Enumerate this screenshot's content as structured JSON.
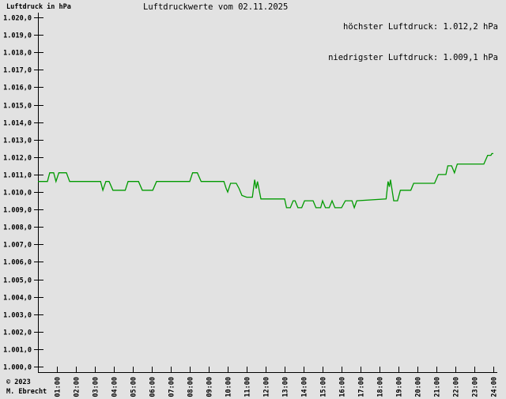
{
  "header": {
    "y_axis_unit": "Luftdruck in hPa",
    "title": "Luftdruckwerte vom 02.11.2025",
    "max_label": "höchster Luftdruck: 1.012,2 hPa",
    "min_label": "niedrigster Luftdruck: 1.009,1 hPa"
  },
  "footer": {
    "copyright": "© 2023",
    "author": "M. Ebrecht"
  },
  "chart_data": {
    "type": "line",
    "title": "Luftdruckwerte vom 02.11.2025",
    "ylabel": "Luftdruck in hPa",
    "x_unit": "hours (Uhrzeit)",
    "xlim": [
      0,
      24
    ],
    "ylim": [
      1000,
      1020
    ],
    "grid": false,
    "legend": "none",
    "line_color": "#009a00",
    "background_color": "#e2e2e2",
    "highest_hpa": 1012.2,
    "lowest_hpa": 1009.1,
    "y_tick_labels": [
      "1.020,0",
      "1.019,0",
      "1.018,0",
      "1.017,0",
      "1.016,0",
      "1.015,0",
      "1.014,0",
      "1.013,0",
      "1.012,0",
      "1.011,0",
      "1.010,0",
      "1.009,0",
      "1.008,0",
      "1.007,0",
      "1.006,0",
      "1.005,0",
      "1.004,0",
      "1.003,0",
      "1.002,0",
      "1.001,0",
      "1.000,0"
    ],
    "y_tick_values": [
      1020,
      1019,
      1018,
      1017,
      1016,
      1015,
      1014,
      1013,
      1012,
      1011,
      1010,
      1009,
      1008,
      1007,
      1006,
      1005,
      1004,
      1003,
      1002,
      1001,
      1000
    ],
    "x_tick_labels": [
      "01:00",
      "02:00",
      "03:00",
      "04:00",
      "05:00",
      "06:00",
      "07:00",
      "08:00",
      "09:00",
      "10:00",
      "11:00",
      "12:00",
      "13:00",
      "14:00",
      "15:00",
      "16:00",
      "17:00",
      "18:00",
      "19:00",
      "20:00",
      "21:00",
      "22:00",
      "23:00",
      "24:00"
    ],
    "x_tick_values": [
      1,
      2,
      3,
      4,
      5,
      6,
      7,
      8,
      9,
      10,
      11,
      12,
      13,
      14,
      15,
      16,
      17,
      18,
      19,
      20,
      21,
      22,
      23,
      24
    ],
    "series": [
      {
        "name": "Luftdruck (hPa)",
        "points": [
          [
            0.0,
            1010.6
          ],
          [
            0.5,
            1010.6
          ],
          [
            0.62,
            1011.1
          ],
          [
            0.83,
            1011.1
          ],
          [
            0.95,
            1010.6
          ],
          [
            1.1,
            1011.1
          ],
          [
            1.5,
            1011.1
          ],
          [
            1.67,
            1010.6
          ],
          [
            3.3,
            1010.6
          ],
          [
            3.42,
            1010.1
          ],
          [
            3.58,
            1010.6
          ],
          [
            3.75,
            1010.6
          ],
          [
            3.95,
            1010.1
          ],
          [
            4.6,
            1010.1
          ],
          [
            4.75,
            1010.6
          ],
          [
            5.3,
            1010.6
          ],
          [
            5.5,
            1010.1
          ],
          [
            6.05,
            1010.1
          ],
          [
            6.25,
            1010.6
          ],
          [
            8.0,
            1010.6
          ],
          [
            8.15,
            1011.1
          ],
          [
            8.4,
            1011.1
          ],
          [
            8.6,
            1010.6
          ],
          [
            9.8,
            1010.6
          ],
          [
            9.92,
            1010.2
          ],
          [
            10.0,
            1010.0
          ],
          [
            10.15,
            1010.5
          ],
          [
            10.45,
            1010.5
          ],
          [
            10.6,
            1010.2
          ],
          [
            10.75,
            1009.8
          ],
          [
            11.0,
            1009.7
          ],
          [
            11.3,
            1009.7
          ],
          [
            11.42,
            1010.7
          ],
          [
            11.5,
            1010.2
          ],
          [
            11.57,
            1010.6
          ],
          [
            11.75,
            1009.6
          ],
          [
            13.0,
            1009.6
          ],
          [
            13.1,
            1009.1
          ],
          [
            13.3,
            1009.1
          ],
          [
            13.45,
            1009.5
          ],
          [
            13.55,
            1009.5
          ],
          [
            13.7,
            1009.1
          ],
          [
            13.9,
            1009.1
          ],
          [
            14.05,
            1009.5
          ],
          [
            14.5,
            1009.5
          ],
          [
            14.65,
            1009.1
          ],
          [
            14.9,
            1009.1
          ],
          [
            15.0,
            1009.5
          ],
          [
            15.15,
            1009.1
          ],
          [
            15.35,
            1009.1
          ],
          [
            15.5,
            1009.5
          ],
          [
            15.65,
            1009.1
          ],
          [
            16.0,
            1009.1
          ],
          [
            16.2,
            1009.5
          ],
          [
            16.55,
            1009.5
          ],
          [
            16.67,
            1009.1
          ],
          [
            16.8,
            1009.5
          ],
          [
            18.35,
            1009.6
          ],
          [
            18.45,
            1010.6
          ],
          [
            18.52,
            1010.3
          ],
          [
            18.58,
            1010.7
          ],
          [
            18.75,
            1009.5
          ],
          [
            18.95,
            1009.5
          ],
          [
            19.1,
            1010.1
          ],
          [
            19.65,
            1010.1
          ],
          [
            19.8,
            1010.5
          ],
          [
            20.9,
            1010.5
          ],
          [
            21.1,
            1011.0
          ],
          [
            21.5,
            1011.0
          ],
          [
            21.6,
            1011.5
          ],
          [
            21.8,
            1011.5
          ],
          [
            21.95,
            1011.1
          ],
          [
            22.1,
            1011.6
          ],
          [
            23.5,
            1011.6
          ],
          [
            23.7,
            1012.1
          ],
          [
            23.87,
            1012.1
          ],
          [
            23.92,
            1012.2
          ],
          [
            24.0,
            1012.2
          ]
        ]
      }
    ]
  }
}
